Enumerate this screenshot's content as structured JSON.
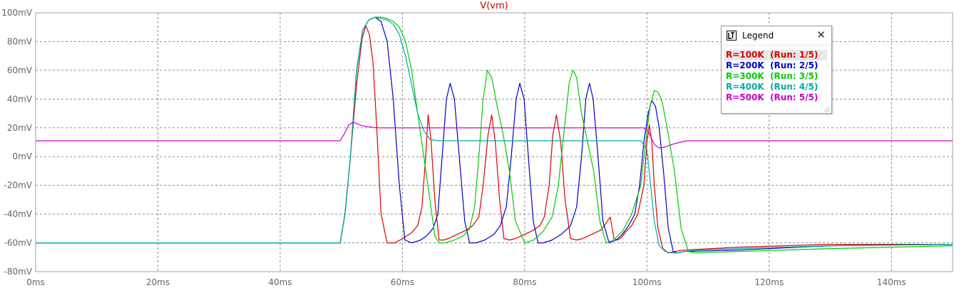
{
  "chart_data": {
    "type": "line",
    "title": "V(vm)",
    "xlabel": "",
    "ylabel": "",
    "xlim": [
      0,
      150
    ],
    "ylim": [
      -80,
      100
    ],
    "x_unit": "ms",
    "y_unit": "mV",
    "x_ticks": [
      "0ms",
      "20ms",
      "40ms",
      "60ms",
      "80ms",
      "100ms",
      "120ms",
      "140ms"
    ],
    "y_ticks": [
      "100mV",
      "80mV",
      "60mV",
      "40mV",
      "20mV",
      "0mV",
      "-20mV",
      "-40mV",
      "-60mV",
      "-80mV"
    ],
    "grid": true,
    "legend_position": "top-right",
    "series": [
      {
        "name": "R=100K  (Run: 1/5)",
        "color": "#dd0000",
        "x": [
          0,
          49.8,
          50.6,
          51.5,
          52.5,
          53.4,
          54.0,
          54.6,
          55.2,
          55.8,
          56.5,
          57.5,
          58.8,
          60,
          61.5,
          62.5,
          63.2,
          63.8,
          64.2,
          64.7,
          65.3,
          66,
          66.8,
          67.5,
          68.5,
          69.5,
          70.5,
          71.5,
          72.5,
          73.2,
          74.0,
          74.6,
          75.2,
          75.9,
          76.6,
          77.5,
          78.5,
          79.5,
          80.5,
          81.5,
          82.5,
          83.2,
          84.0,
          84.6,
          85.2,
          85.9,
          86.6,
          87.5,
          88.5,
          89.5,
          90.5,
          91.5,
          92.5,
          93.2,
          94.0,
          94.6,
          95.2,
          95.9,
          96.6,
          97.5,
          98.5,
          99.5,
          100.0,
          100.4,
          100.8,
          101.2,
          101.8,
          102.6,
          103.5,
          104.5,
          106,
          115,
          130,
          150
        ],
        "y": [
          -60,
          -60,
          -40,
          0,
          50,
          82,
          91,
          85,
          65,
          20,
          -40,
          -60,
          -60,
          -57,
          -53,
          -48,
          -35,
          0,
          29,
          10,
          -30,
          -58,
          -58,
          -57,
          -55,
          -53,
          -51,
          -48,
          -42,
          -20,
          15,
          29,
          10,
          -30,
          -57,
          -58,
          -57,
          -55,
          -53,
          -51,
          -48,
          -42,
          -20,
          15,
          29,
          10,
          -30,
          -57,
          -58,
          -57,
          -55,
          -53,
          -51,
          -47,
          -42,
          -57,
          -58,
          -56,
          -52,
          -48,
          -40,
          -20,
          10,
          22,
          10,
          -20,
          -50,
          -64,
          -67,
          -66,
          -65,
          -63,
          -61,
          -61
        ]
      },
      {
        "name": "R=200K  (Run: 2/5)",
        "color": "#0000cc",
        "x": [
          0,
          49.8,
          50.6,
          51.5,
          52.5,
          53.5,
          54.5,
          55.5,
          56.5,
          57.5,
          58.5,
          59.5,
          60.4,
          61.5,
          63,
          64,
          65,
          65.8,
          66.5,
          67.2,
          67.8,
          68.5,
          69.3,
          70.2,
          71,
          72,
          73.5,
          75,
          76,
          77,
          77.8,
          78.6,
          79.2,
          79.9,
          80.6,
          81.4,
          82.2,
          83,
          84.5,
          86,
          87.5,
          88.5,
          89.3,
          90,
          90.6,
          91.2,
          92,
          92.8,
          93.8,
          95,
          96,
          97,
          98,
          98.8,
          99.5,
          100.2,
          100.8,
          101.4,
          102,
          102.7,
          103.5,
          104.3,
          105,
          106,
          115,
          130,
          150
        ],
        "y": [
          -60,
          -60,
          -40,
          0,
          60,
          88,
          95,
          97,
          94,
          80,
          40,
          -20,
          -58,
          -60,
          -58,
          -55,
          -50,
          -40,
          0,
          40,
          51,
          40,
          0,
          -45,
          -60,
          -60,
          -58,
          -54,
          -48,
          -35,
          0,
          40,
          51,
          40,
          0,
          -45,
          -60,
          -60,
          -58,
          -54,
          -48,
          -35,
          0,
          40,
          51,
          40,
          0,
          -45,
          -60,
          -58,
          -54,
          -48,
          -40,
          -20,
          10,
          30,
          39,
          35,
          20,
          -10,
          -50,
          -66,
          -67,
          -66,
          -65,
          -62,
          -61
        ]
      },
      {
        "name": "R=300K  (Run: 3/5)",
        "color": "#00cc00",
        "x": [
          0,
          49.8,
          50.6,
          51.5,
          52.5,
          53.5,
          54.5,
          55.5,
          56.5,
          57.5,
          58.5,
          59.5,
          60.5,
          61.5,
          62.5,
          63.5,
          64.5,
          65.3,
          66,
          67,
          68.5,
          70,
          71,
          71.8,
          72.5,
          73.2,
          73.9,
          74.6,
          75.5,
          76.5,
          77.5,
          78.5,
          80,
          81.5,
          83,
          84.5,
          85.5,
          86.5,
          87.3,
          87.9,
          88.5,
          89.3,
          90.3,
          91.3,
          92.3,
          93.3,
          94.5,
          96,
          97.5,
          99,
          99.8,
          100.5,
          101.2,
          101.8,
          102.5,
          103.3,
          104.5,
          105.6,
          106.8,
          108,
          115,
          130,
          150
        ],
        "y": [
          -60,
          -60,
          -40,
          0,
          60,
          88,
          95,
          97,
          97,
          96,
          94,
          90,
          80,
          60,
          30,
          0,
          -30,
          -55,
          -60,
          -60,
          -58,
          -55,
          -50,
          -35,
          0,
          40,
          60,
          55,
          35,
          15,
          -10,
          -45,
          -60,
          -58,
          -52,
          -42,
          -20,
          20,
          52,
          60,
          55,
          30,
          10,
          -10,
          -45,
          -60,
          -58,
          -52,
          -40,
          -20,
          10,
          35,
          46,
          45,
          38,
          20,
          -10,
          -50,
          -66,
          -67,
          -66,
          -64,
          -62
        ]
      },
      {
        "name": "R=400K  (Run: 4/5)",
        "color": "#00aaaa",
        "x": [
          0,
          49.8,
          50.6,
          51.5,
          52.5,
          53.5,
          54.5,
          55.5,
          56.5,
          57.5,
          58.5,
          59.5,
          60.5,
          61.5,
          62.5,
          63.5,
          64.5,
          66,
          70,
          80,
          90,
          99,
          100,
          100.6,
          101.2,
          102,
          103,
          104,
          105,
          106,
          108,
          115,
          130,
          150
        ],
        "y": [
          -60,
          -60,
          -40,
          0,
          60,
          88,
          95,
          97,
          96,
          95,
          92,
          85,
          70,
          50,
          30,
          18,
          12,
          11,
          11,
          11,
          11,
          11,
          5,
          -20,
          -45,
          -62,
          -66,
          -67,
          -67,
          -66,
          -65,
          -64,
          -62,
          -61
        ]
      },
      {
        "name": "R=500K  (Run: 5/5)",
        "color": "#cc00cc",
        "x": [
          0,
          49.8,
          50.5,
          51.2,
          52,
          53,
          54,
          55,
          56,
          58,
          70,
          80,
          90,
          99.5,
          100.3,
          100.8,
          101.3,
          102,
          102.8,
          103.5,
          104.5,
          105.5,
          106.5,
          110,
          130,
          150
        ],
        "y": [
          11,
          11,
          16,
          22,
          24,
          22,
          21,
          20.5,
          20,
          20,
          20,
          20,
          20,
          20,
          17,
          12,
          8,
          6,
          6.5,
          7.5,
          9,
          10,
          11,
          11,
          11,
          11
        ]
      }
    ]
  }
}
